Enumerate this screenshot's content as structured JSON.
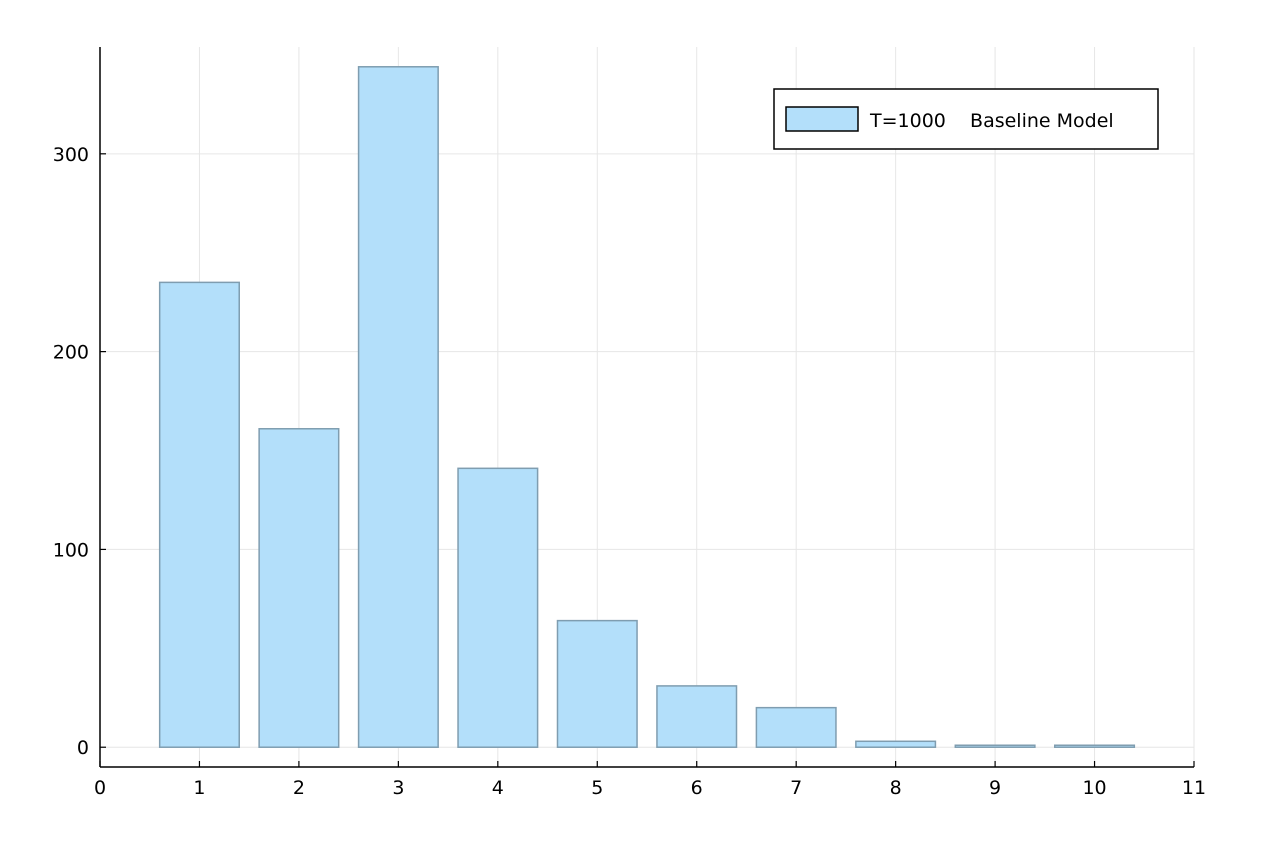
{
  "chart_data": {
    "type": "bar",
    "title": "",
    "xlabel": "",
    "ylabel": "",
    "x": [
      1,
      2,
      3,
      4,
      5,
      6,
      7,
      8,
      9,
      10
    ],
    "series": [
      {
        "name": "T=1000    Baseline Model",
        "values": [
          235,
          161,
          344,
          141,
          64,
          31,
          20,
          3,
          1,
          1
        ]
      }
    ],
    "bar_width": 0.8,
    "xlim": [
      0,
      11
    ],
    "ylim": [
      -10,
      354
    ],
    "xticks": [
      0,
      1,
      2,
      3,
      4,
      5,
      6,
      7,
      8,
      9,
      10,
      11
    ],
    "yticks": [
      0,
      100,
      200,
      300
    ],
    "grid": true,
    "legend_position": "top-right",
    "colors": {
      "bar_fill": "#b3dffa",
      "bar_stroke": "#7f9db0",
      "grid": "#e6e6e6",
      "axis": "#000000"
    }
  }
}
